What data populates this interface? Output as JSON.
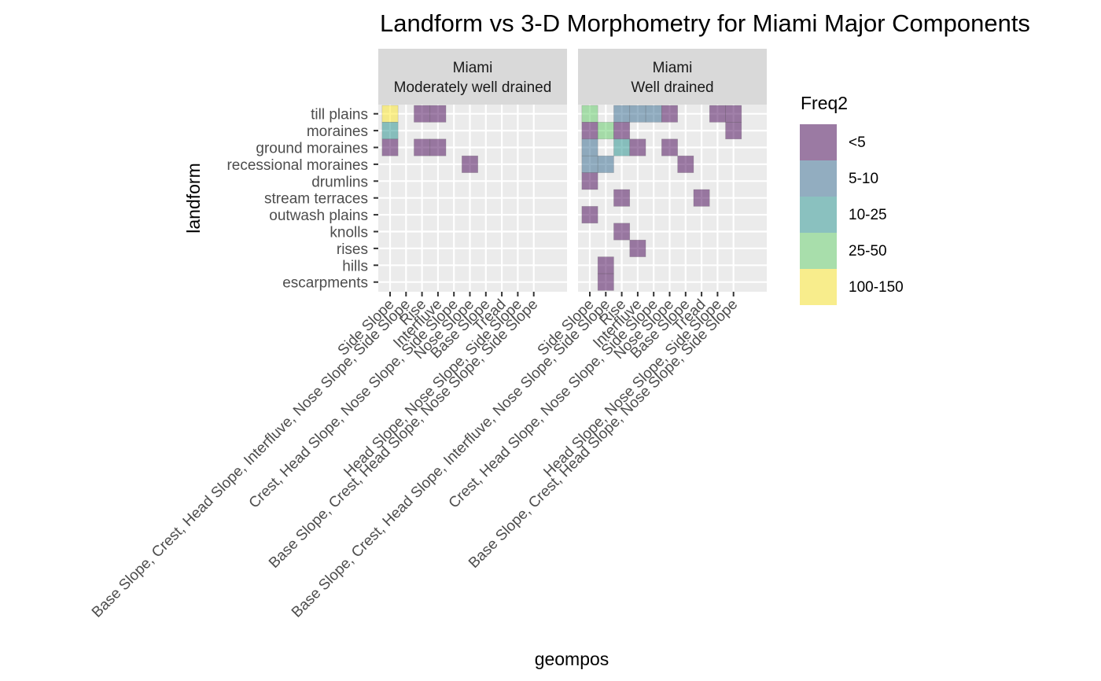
{
  "chart_data": {
    "type": "heatmap",
    "title": "Landform vs 3-D Morphometry for Miami Major Components",
    "xlabel": "geompos",
    "ylabel": "landform",
    "x_categories": [
      "Side Slope",
      "Base Slope, Crest, Head Slope, Interfluve, Nose Slope, Side Slope",
      "Rise",
      "Interfluve",
      "Crest, Head Slope, Nose Slope, Side Slope",
      "Nose Slope",
      "Base Slope",
      "Tread",
      "Head Slope, Nose Slope, Side Slope",
      "Base Slope, Crest, Head Slope, Nose Slope, Side Slope"
    ],
    "y_categories": [
      "till plains",
      "moraines",
      "ground moraines",
      "recessional moraines",
      "drumlins",
      "stream terraces",
      "outwash plains",
      "knolls",
      "rises",
      "hills",
      "escarpments"
    ],
    "facets": [
      {
        "label_line1": "Miami",
        "label_line2": "Moderately well drained",
        "cells": [
          {
            "x": 0,
            "y": 0,
            "level": "100-150"
          },
          {
            "x": 2,
            "y": 0,
            "level": "<5"
          },
          {
            "x": 3,
            "y": 0,
            "level": "<5"
          },
          {
            "x": 0,
            "y": 1,
            "level": "10-25"
          },
          {
            "x": 0,
            "y": 2,
            "level": "<5"
          },
          {
            "x": 2,
            "y": 2,
            "level": "<5"
          },
          {
            "x": 3,
            "y": 2,
            "level": "<5"
          },
          {
            "x": 5,
            "y": 3,
            "level": "<5"
          }
        ]
      },
      {
        "label_line1": "Miami",
        "label_line2": "Well drained",
        "cells": [
          {
            "x": 0,
            "y": 0,
            "level": "25-50"
          },
          {
            "x": 2,
            "y": 0,
            "level": "5-10"
          },
          {
            "x": 3,
            "y": 0,
            "level": "5-10"
          },
          {
            "x": 4,
            "y": 0,
            "level": "5-10"
          },
          {
            "x": 5,
            "y": 0,
            "level": "<5"
          },
          {
            "x": 8,
            "y": 0,
            "level": "<5"
          },
          {
            "x": 9,
            "y": 0,
            "level": "<5"
          },
          {
            "x": 0,
            "y": 1,
            "level": "<5"
          },
          {
            "x": 1,
            "y": 1,
            "level": "25-50"
          },
          {
            "x": 2,
            "y": 1,
            "level": "<5"
          },
          {
            "x": 9,
            "y": 1,
            "level": "<5"
          },
          {
            "x": 0,
            "y": 2,
            "level": "5-10"
          },
          {
            "x": 2,
            "y": 2,
            "level": "10-25"
          },
          {
            "x": 3,
            "y": 2,
            "level": "<5"
          },
          {
            "x": 5,
            "y": 2,
            "level": "<5"
          },
          {
            "x": 0,
            "y": 3,
            "level": "5-10"
          },
          {
            "x": 1,
            "y": 3,
            "level": "5-10"
          },
          {
            "x": 6,
            "y": 3,
            "level": "<5"
          },
          {
            "x": 0,
            "y": 4,
            "level": "<5"
          },
          {
            "x": 2,
            "y": 5,
            "level": "<5"
          },
          {
            "x": 7,
            "y": 5,
            "level": "<5"
          },
          {
            "x": 0,
            "y": 6,
            "level": "<5"
          },
          {
            "x": 2,
            "y": 7,
            "level": "<5"
          },
          {
            "x": 3,
            "y": 8,
            "level": "<5"
          },
          {
            "x": 1,
            "y": 9,
            "level": "<5"
          },
          {
            "x": 1,
            "y": 10,
            "level": "<5"
          }
        ]
      }
    ],
    "legend": {
      "title": "Freq2",
      "position": "right",
      "levels": [
        {
          "label": "<5",
          "color": "#440154"
        },
        {
          "label": "5-10",
          "color": "#31688E"
        },
        {
          "label": "10-25",
          "color": "#21908C"
        },
        {
          "label": "25-50",
          "color": "#5DC963"
        },
        {
          "label": "100-150",
          "color": "#FDE725"
        }
      ]
    },
    "tile_alpha": 0.5,
    "panel_background": "#EBEBEB",
    "strip_background": "#D9D9D9",
    "grid": true
  }
}
